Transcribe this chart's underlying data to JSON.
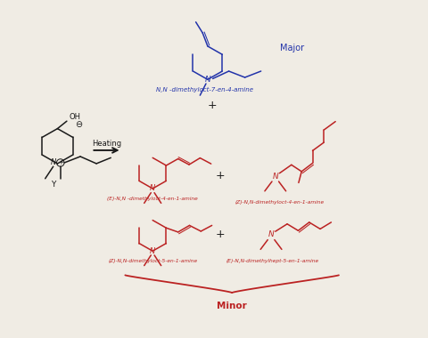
{
  "bg_color": "#f0ece4",
  "blue_color": "#2233aa",
  "red_color": "#bb2222",
  "black_color": "#1a1a1a",
  "label_major": "Major",
  "label_minor": "Minor",
  "label_heating": "Heating",
  "label_nn_dimethyloct7en4amine": "N,N -dimethyloct-7-en-4-amine",
  "label_E_nn_dimethyloct4en1amine": "(E)-N,N -dimethyloct-4-en-1-amine",
  "label_Z_nn_dimethyloct4en1amine": "(Z)-N,N-dimethyloct-4-en-1-amine",
  "label_Z_nn_dimethyloct5en1amine": "(Z)-N,N-dimethyloct-5-en-1-amine",
  "label_E_nn_dimethylhept5en1amine": "(E)-N,N-dimethylhept-5-en-1-amine",
  "figsize": [
    4.8,
    3.8
  ],
  "dpi": 100
}
